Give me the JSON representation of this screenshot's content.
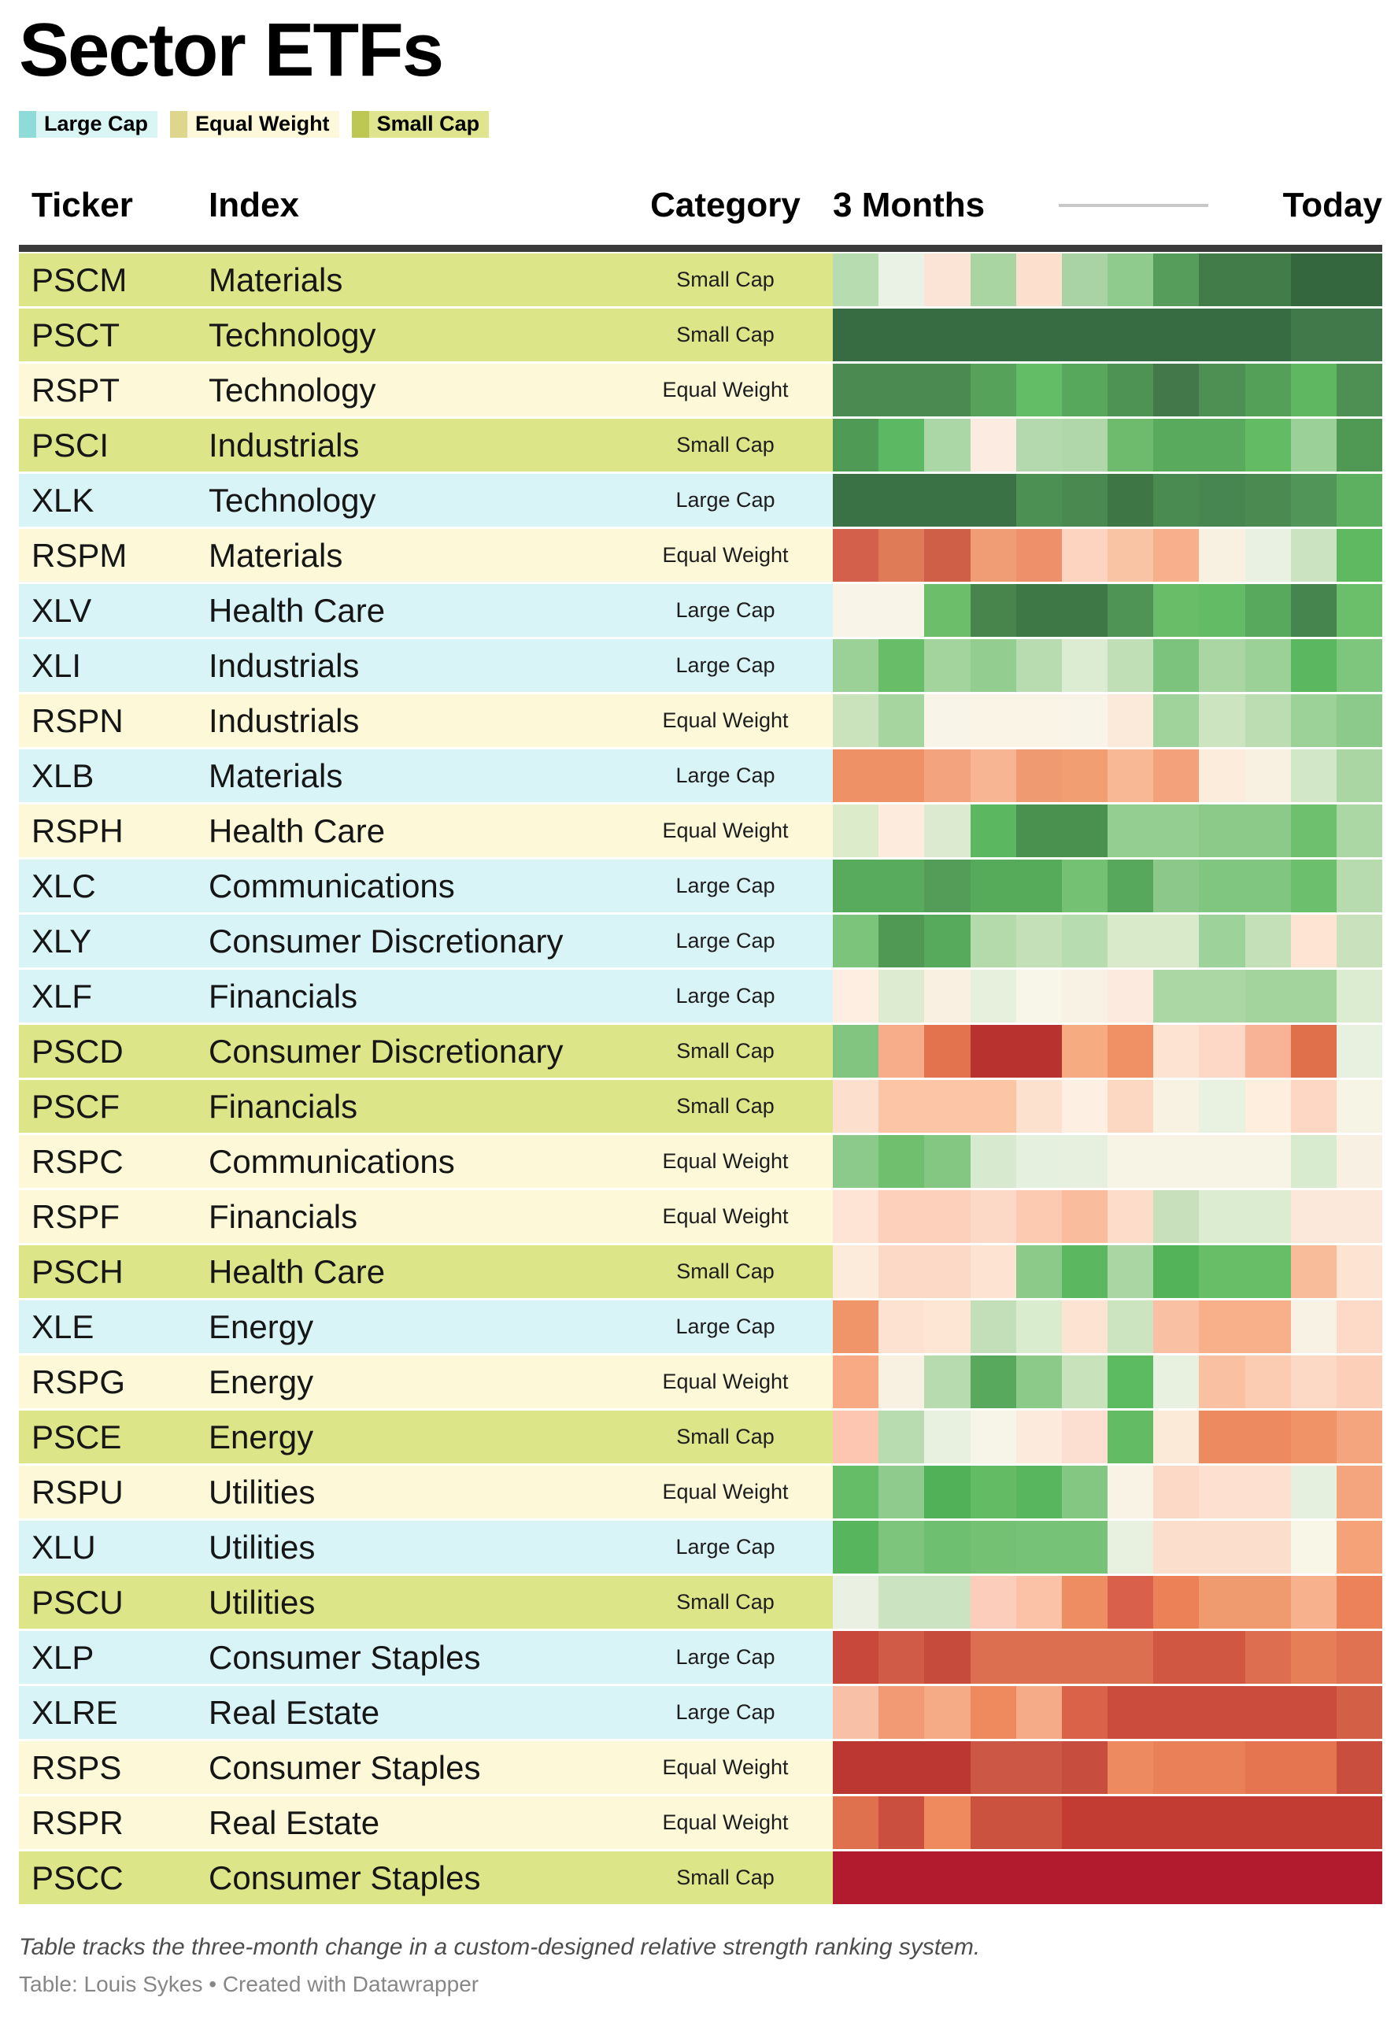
{
  "title": "Sector ETFs",
  "legend": [
    {
      "label": "Large Cap",
      "swatch": "#8fdbd8",
      "bg": "#d9f6f4"
    },
    {
      "label": "Equal Weight",
      "swatch": "#ddd78e",
      "bg": "#fdf8d9"
    },
    {
      "label": "Small Cap",
      "swatch": "#bdc754",
      "bg": "#dfe48e"
    }
  ],
  "header": {
    "ticker": "Ticker",
    "index": "Index",
    "category": "Category",
    "start": "3 Months",
    "end": "Today"
  },
  "category_styles": {
    "Large Cap": "#d8f4f7",
    "Equal Weight": "#fdf9d8",
    "Small Cap": "#dde589"
  },
  "rows": [
    {
      "ticker": "PSCM",
      "index": "Materials",
      "category": "Small Cap",
      "heat": [
        "#b7dcb0",
        "#e9f2e4",
        "#fbe3d6",
        "#a8d5a2",
        "#fcdfcc",
        "#a9d3a4",
        "#8fcb8d",
        "#569c5b",
        "#417c49",
        "#417c49",
        "#35673f",
        "#35673f"
      ]
    },
    {
      "ticker": "PSCT",
      "index": "Technology",
      "category": "Small Cap",
      "heat": [
        "#376b42",
        "#376b42",
        "#376b42",
        "#376b42",
        "#376b42",
        "#376b42",
        "#376b42",
        "#376b42",
        "#376b42",
        "#376b42",
        "#42794a",
        "#42794a"
      ]
    },
    {
      "ticker": "RSPT",
      "index": "Technology",
      "category": "Equal Weight",
      "heat": [
        "#4b8b51",
        "#4b8b51",
        "#4b8b51",
        "#56a25a",
        "#63bc66",
        "#57a85c",
        "#4e9254",
        "#43784a",
        "#4e8f53",
        "#55a059",
        "#5fb762",
        "#4e9053"
      ]
    },
    {
      "ticker": "PSCI",
      "index": "Industrials",
      "category": "Small Cap",
      "heat": [
        "#4f9a55",
        "#5cb862",
        "#abd6a5",
        "#fcebe0",
        "#b5d9ae",
        "#b0d7aa",
        "#6fbb6e",
        "#5aaa5e",
        "#5aaa5e",
        "#63bc64",
        "#9bd098",
        "#4f9954"
      ]
    },
    {
      "ticker": "XLK",
      "index": "Technology",
      "category": "Large Cap",
      "heat": [
        "#3a7245",
        "#3a7245",
        "#3a7245",
        "#3a7245",
        "#4d9053",
        "#4a8950",
        "#3e7646",
        "#4a8b51",
        "#478551",
        "#4b8a51",
        "#529558",
        "#5db05f"
      ]
    },
    {
      "ticker": "RSPM",
      "index": "Materials",
      "category": "Equal Weight",
      "heat": [
        "#d3604a",
        "#df7b57",
        "#d05f47",
        "#f09c75",
        "#ee9069",
        "#fdd4c0",
        "#f9c4a4",
        "#f7b08b",
        "#f8f0e0",
        "#e9f1e2",
        "#cbe3c0",
        "#5fb961"
      ]
    },
    {
      "ticker": "XLV",
      "index": "Health Care",
      "category": "Large Cap",
      "heat": [
        "#f8f5e8",
        "#f8f5e8",
        "#6cbe6b",
        "#47854d",
        "#3e7846",
        "#3e7846",
        "#4f9355",
        "#69bd68",
        "#64bb65",
        "#58a85d",
        "#47854e",
        "#6bbe6a"
      ]
    },
    {
      "ticker": "XLI",
      "index": "Industrials",
      "category": "Large Cap",
      "heat": [
        "#9bd096",
        "#68bd68",
        "#a3d49d",
        "#93cd90",
        "#b8dcaf",
        "#dcecd2",
        "#c1dfb7",
        "#7cc47d",
        "#a9d6a3",
        "#9bd096",
        "#5cb860",
        "#7ec57e"
      ]
    },
    {
      "ticker": "RSPN",
      "index": "Industrials",
      "category": "Equal Weight",
      "heat": [
        "#cbe3bd",
        "#a6d5a0",
        "#f8f5e8",
        "#f9f4e6",
        "#f9f4e6",
        "#f8f5e8",
        "#fbe9da",
        "#a0d39b",
        "#cce4c0",
        "#bcddb1",
        "#9cd197",
        "#8cca8b"
      ]
    },
    {
      "ticker": "XLB",
      "index": "Materials",
      "category": "Large Cap",
      "heat": [
        "#ee9166",
        "#ee9166",
        "#f3a37e",
        "#f7b593",
        "#f09a71",
        "#f29e73",
        "#f8b795",
        "#f2a17b",
        "#fcecdc",
        "#f8f0e1",
        "#d2e7c7",
        "#a9d6a3"
      ]
    },
    {
      "ticker": "RSPH",
      "index": "Health Care",
      "category": "Equal Weight",
      "heat": [
        "#dcecca",
        "#fdebdd",
        "#dcead0",
        "#5cb860",
        "#4a9150",
        "#4a9150",
        "#95ce91",
        "#95ce91",
        "#8cca8a",
        "#8cca8a",
        "#6ec06f",
        "#abd7a5"
      ]
    },
    {
      "ticker": "XLC",
      "index": "Communications",
      "category": "Large Cap",
      "heat": [
        "#58aa5c",
        "#58aa5c",
        "#549d59",
        "#56ab5b",
        "#56ab5b",
        "#74c173",
        "#57a85c",
        "#8bc889",
        "#80c580",
        "#80c580",
        "#6cbf6c",
        "#b7dbae"
      ]
    },
    {
      "ticker": "XLY",
      "index": "Consumer Discretionary",
      "category": "Large Cap",
      "heat": [
        "#7cc47c",
        "#4f9955",
        "#57a95c",
        "#b4daab",
        "#c4e0b8",
        "#b7dcb0",
        "#d8eaca",
        "#d8eaca",
        "#9ed29b",
        "#c3e0b8",
        "#fde4d3",
        "#c9e2bd"
      ]
    },
    {
      "ticker": "XLF",
      "index": "Financials",
      "category": "Large Cap",
      "heat": [
        "#fdeee1",
        "#ddecd0",
        "#faf0e2",
        "#e7f0dc",
        "#f8f6e9",
        "#f8f2e4",
        "#fdeade",
        "#abd7a5",
        "#abd7a5",
        "#a3d49e",
        "#a3d49e",
        "#dcecd1"
      ]
    },
    {
      "ticker": "PSCD",
      "index": "Consumer Discretionary",
      "category": "Small Cap",
      "heat": [
        "#82c581",
        "#f7ad89",
        "#e3734f",
        "#b8322f",
        "#b8322f",
        "#f6ab81",
        "#ef9065",
        "#fde4d2",
        "#fdd8c6",
        "#f8b295",
        "#e0704b",
        "#e8f0df"
      ]
    },
    {
      "ticker": "PSCF",
      "index": "Financials",
      "category": "Small Cap",
      "heat": [
        "#fcdfcc",
        "#fbc5a6",
        "#fbc5a6",
        "#fbc5a6",
        "#fde1cf",
        "#fdf0e2",
        "#fcd7c2",
        "#f8f2e2",
        "#e9f2e0",
        "#fdeedd",
        "#fdd7c3",
        "#f6f4e4"
      ]
    },
    {
      "ticker": "RSPC",
      "index": "Communications",
      "category": "Equal Weight",
      "heat": [
        "#8cca8b",
        "#6fbf6e",
        "#84c783",
        "#d7ead0",
        "#e6f0de",
        "#e7f0de",
        "#f7f4e6",
        "#f7f4e6",
        "#f7f4e6",
        "#f7f4e6",
        "#d9ebce",
        "#f7f0e3"
      ]
    },
    {
      "ticker": "RSPF",
      "index": "Financials",
      "category": "Equal Weight",
      "heat": [
        "#fde4d4",
        "#fcd0ba",
        "#fcd0ba",
        "#fcd9c6",
        "#fccab1",
        "#f9bc9c",
        "#fddcca",
        "#c8e1bc",
        "#dcecd1",
        "#dcecd1",
        "#fbe8da",
        "#fbe8da"
      ]
    },
    {
      "ticker": "PSCH",
      "index": "Health Care",
      "category": "Small Cap",
      "heat": [
        "#fceadb",
        "#fcd9c7",
        "#fcd9c7",
        "#fde3d2",
        "#8cca8a",
        "#5cb860",
        "#a9d6a3",
        "#53b359",
        "#68bd67",
        "#68bd67",
        "#f9bc9b",
        "#fde3d2"
      ]
    },
    {
      "ticker": "XLE",
      "index": "Energy",
      "category": "Large Cap",
      "heat": [
        "#f0946a",
        "#fde2d2",
        "#fde7d4",
        "#c3dfb9",
        "#d9eccd",
        "#fde3d2",
        "#cde4c1",
        "#f9c0a3",
        "#f7b089",
        "#f7b089",
        "#f7f2e3",
        "#fddac7"
      ]
    },
    {
      "ticker": "RSPG",
      "index": "Energy",
      "category": "Equal Weight",
      "heat": [
        "#f7aa84",
        "#f8f1e2",
        "#b7dbae",
        "#58a95d",
        "#8cca8a",
        "#c8e2bc",
        "#5cba60",
        "#e8f1e0",
        "#f9c0a1",
        "#fcccb2",
        "#fcd9c4",
        "#fccfb8"
      ]
    },
    {
      "ticker": "PSCE",
      "index": "Energy",
      "category": "Small Cap",
      "heat": [
        "#fcc6b1",
        "#b8dcaf",
        "#e8f0df",
        "#f7f5e7",
        "#fcebdd",
        "#fcdfd0",
        "#63bb64",
        "#fcead9",
        "#ed8a60",
        "#ed8a60",
        "#f09468",
        "#f5a57e"
      ]
    },
    {
      "ticker": "RSPU",
      "index": "Utilities",
      "category": "Equal Weight",
      "heat": [
        "#66bd67",
        "#8fcb8d",
        "#50b158",
        "#63bc64",
        "#58b75e",
        "#84c783",
        "#f8f3e5",
        "#fcd8c6",
        "#fde0d0",
        "#fde0d0",
        "#e6f0de",
        "#f5a57d"
      ]
    },
    {
      "ticker": "XLU",
      "index": "Utilities",
      "category": "Large Cap",
      "heat": [
        "#57b65d",
        "#7dc47d",
        "#6fbf70",
        "#74c174",
        "#76c276",
        "#76c276",
        "#e8f1df",
        "#fcdecd",
        "#fcdecd",
        "#fcdecd",
        "#f7f6e7",
        "#f5a278"
      ]
    },
    {
      "ticker": "PSCU",
      "index": "Utilities",
      "category": "Small Cap",
      "heat": [
        "#eaf1e2",
        "#cbe3c0",
        "#cbe3c0",
        "#fccdbb",
        "#fbc2a8",
        "#ee8c62",
        "#d9604b",
        "#ec8157",
        "#f09a70",
        "#f09a70",
        "#f8b18d",
        "#ec8259"
      ]
    },
    {
      "ticker": "XLP",
      "index": "Consumer Staples",
      "category": "Large Cap",
      "heat": [
        "#c8493c",
        "#d05c48",
        "#c74b3d",
        "#dc6f4f",
        "#dc6f4f",
        "#dc6f4f",
        "#dc6f4f",
        "#d05843",
        "#d05843",
        "#dd6f50",
        "#e67e57",
        "#e07252"
      ]
    },
    {
      "ticker": "XLRE",
      "index": "Real Estate",
      "category": "Large Cap",
      "heat": [
        "#f9c0a8",
        "#f29a74",
        "#f5ab85",
        "#ee8a5e",
        "#f5ab88",
        "#d96248",
        "#cb4c3c",
        "#cb4c3c",
        "#cb4c3c",
        "#cb4c3c",
        "#cb4c3c",
        "#d45f47"
      ]
    },
    {
      "ticker": "RSPS",
      "index": "Consumer Staples",
      "category": "Equal Weight",
      "heat": [
        "#bc3732",
        "#bc3732",
        "#bc3732",
        "#cd5745",
        "#cd5745",
        "#c74e3e",
        "#ee8a60",
        "#ea8058",
        "#ea8058",
        "#e47550",
        "#e47550",
        "#c94e3e"
      ]
    },
    {
      "ticker": "RSPR",
      "index": "Real Estate",
      "category": "Equal Weight",
      "heat": [
        "#e0714f",
        "#ca4f3e",
        "#ef8a5f",
        "#cc5240",
        "#cc5240",
        "#c23c34",
        "#c23c34",
        "#c23c34",
        "#c23c34",
        "#c23c34",
        "#c23c34",
        "#c23c34"
      ]
    },
    {
      "ticker": "PSCC",
      "index": "Consumer Staples",
      "category": "Small Cap",
      "heat": [
        "#b11b2d",
        "#b11b2d",
        "#b11b2d",
        "#b11b2d",
        "#b11b2d",
        "#b11b2d",
        "#b11b2d",
        "#b11b2d",
        "#b11b2d",
        "#b11b2d",
        "#b11b2d",
        "#b11b2d"
      ]
    }
  ],
  "footer": {
    "note": "Table tracks the three-month change in a custom-designed relative strength ranking system.",
    "credit": "Table: Louis Sykes • Created with Datawrapper"
  },
  "chart_data": {
    "type": "heatmap",
    "title": "Sector ETFs",
    "x_axis": {
      "start_label": "3 Months",
      "end_label": "Today",
      "steps": 12
    },
    "value_encoding": "color only (no numeric labels shown); red = relative strength weakening, green = relative strength improving",
    "categories": [
      "PSCM",
      "PSCT",
      "RSPT",
      "PSCI",
      "XLK",
      "RSPM",
      "XLV",
      "XLI",
      "RSPN",
      "XLB",
      "RSPH",
      "XLC",
      "XLY",
      "XLF",
      "PSCD",
      "PSCF",
      "RSPC",
      "RSPF",
      "PSCH",
      "XLE",
      "RSPG",
      "PSCE",
      "RSPU",
      "XLU",
      "PSCU",
      "XLP",
      "XLRE",
      "RSPS",
      "RSPR",
      "PSCC"
    ],
    "legend_position": "top",
    "grid": false
  }
}
